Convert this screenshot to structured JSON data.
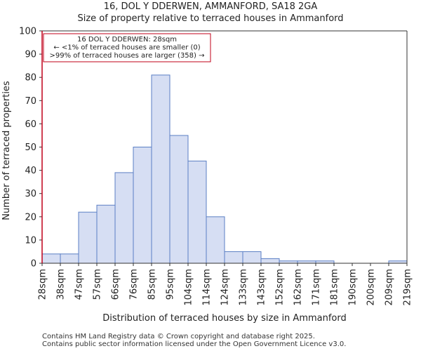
{
  "header": {
    "title": "16, DOL Y DDERWEN, AMMANFORD, SA18 2GA",
    "subtitle": "Size of property relative to terraced houses in Ammanford"
  },
  "footer": {
    "line1": "Contains HM Land Registry data © Crown copyright and database right 2025.",
    "line2": "Contains public sector information licensed under the Open Government Licence v3.0."
  },
  "colors": {
    "bar_fill": "#d6def3",
    "bar_stroke": "#5b7fc4",
    "marker": "#c0001a",
    "axis": "#333333"
  },
  "chart_data": {
    "type": "bar",
    "xlabel": "Distribution of terraced houses by size in Ammanford",
    "ylabel": "Number of terraced properties",
    "ylim": [
      0,
      100
    ],
    "yticks": [
      0,
      10,
      20,
      30,
      40,
      50,
      60,
      70,
      80,
      90,
      100
    ],
    "bin_edges": [
      "28sqm",
      "38sqm",
      "47sqm",
      "57sqm",
      "66sqm",
      "76sqm",
      "85sqm",
      "95sqm",
      "104sqm",
      "114sqm",
      "124sqm",
      "133sqm",
      "143sqm",
      "152sqm",
      "162sqm",
      "171sqm",
      "181sqm",
      "190sqm",
      "200sqm",
      "209sqm",
      "219sqm"
    ],
    "values": [
      4,
      4,
      22,
      25,
      39,
      50,
      81,
      55,
      44,
      20,
      5,
      5,
      2,
      1,
      1,
      1,
      0,
      0,
      0,
      1
    ],
    "marker": {
      "label": "16 DOL Y DDERWEN: 28sqm",
      "position_bin": 0
    },
    "annotation": [
      "16 DOL Y DDERWEN: 28sqm",
      "← <1% of terraced houses are smaller (0)",
      ">99% of terraced houses are larger (358) →"
    ]
  }
}
